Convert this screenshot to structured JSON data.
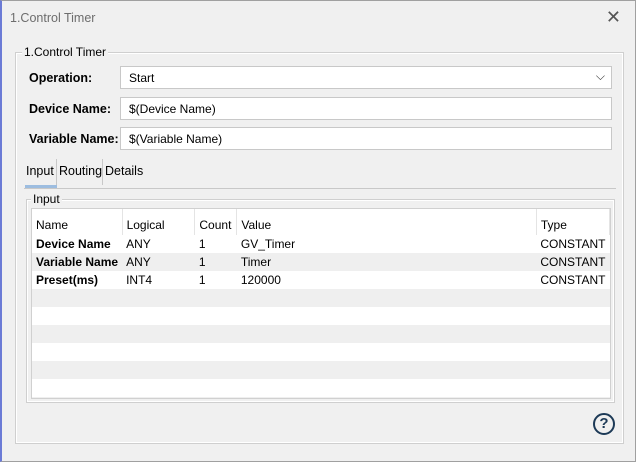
{
  "window": {
    "title": "1.Control Timer",
    "close_icon": "close-icon"
  },
  "group": {
    "label": "1.Control Timer"
  },
  "form": {
    "operation_label": "Operation:",
    "operation_value": "Start",
    "device_label": "Device Name:",
    "device_value": "$(Device Name)",
    "variable_label": "Variable Name:",
    "variable_value": "$(Variable Name)"
  },
  "tabs": [
    {
      "label": "Input",
      "active": true
    },
    {
      "label": "Routing"
    },
    {
      "label": "Details"
    }
  ],
  "input_panel": {
    "label": "Input",
    "columns": [
      "Name",
      "Logical",
      "Count",
      "Value",
      "Type"
    ],
    "rows": [
      {
        "name": "Device Name",
        "logical": "ANY",
        "count": "1",
        "value": "GV_Timer",
        "type": "CONSTANT"
      },
      {
        "name": "Variable Name",
        "logical": "ANY",
        "count": "1",
        "value": "Timer",
        "type": "CONSTANT"
      },
      {
        "name": "Preset(ms)",
        "logical": "INT4",
        "count": "1",
        "value": "120000",
        "type": "CONSTANT"
      }
    ]
  },
  "help": {
    "icon": "help-icon",
    "glyph": "?"
  },
  "colors": {
    "tab_underline": "#9dbde0",
    "help_icon": "#1d3a57"
  }
}
